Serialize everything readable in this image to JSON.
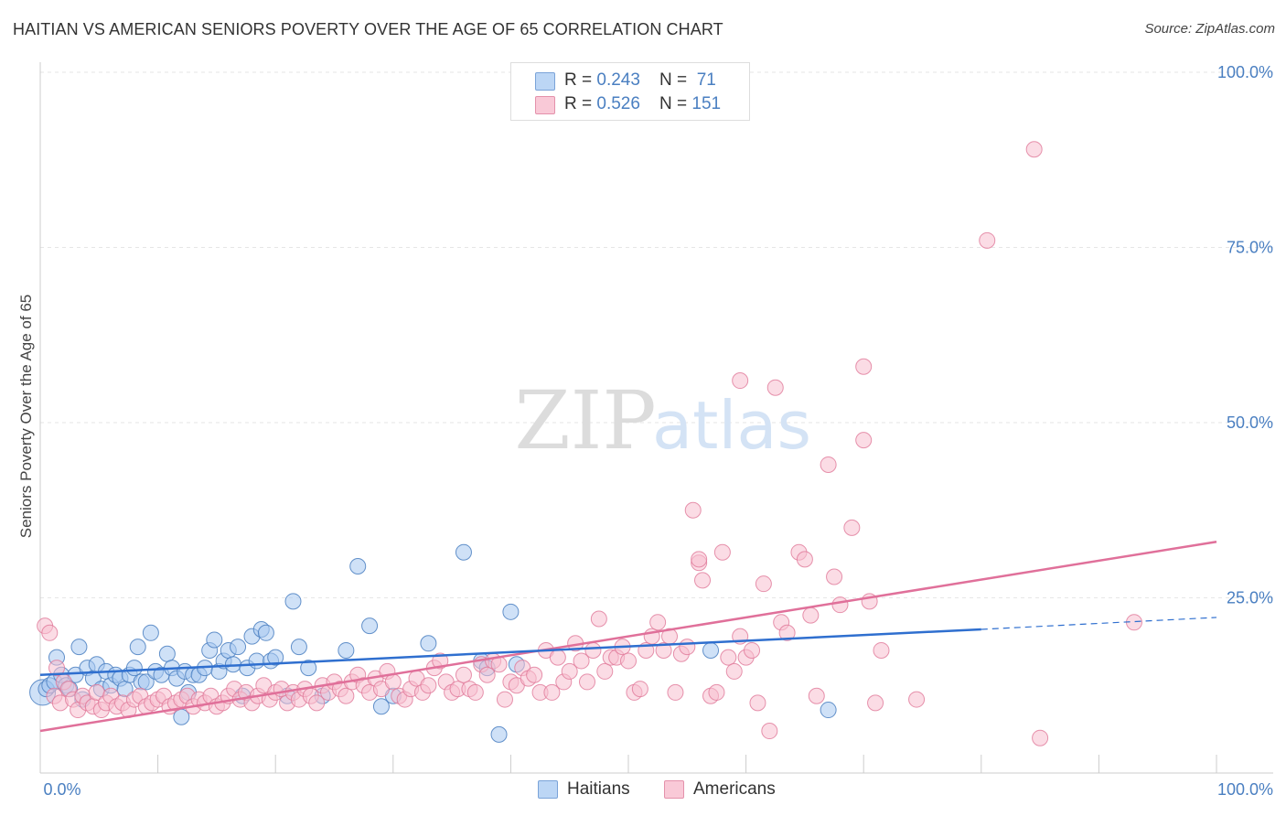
{
  "title": "HAITIAN VS AMERICAN SENIORS POVERTY OVER THE AGE OF 65 CORRELATION CHART",
  "source": "Source: ZipAtlas.com",
  "watermark": {
    "zip": "ZIP",
    "atlas": "atlas"
  },
  "legend": {
    "rows": [
      {
        "r_label": "R = ",
        "r_value": "0.243",
        "n_label": "N = ",
        "n_value": " 71"
      },
      {
        "r_label": "R = ",
        "r_value": "0.526",
        "n_label": "N = ",
        "n_value": "151"
      }
    ]
  },
  "bottom_legend": {
    "haitians": "Haitians",
    "americans": "Americans"
  },
  "colors": {
    "haitian_fill": "#a8c8f0",
    "haitian_stroke": "#4a7fc1",
    "haitian_line": "#2f6fcf",
    "american_fill": "#f7bfd0",
    "american_stroke": "#e07898",
    "american_line": "#e0709a",
    "tick_text": "#4a7fc1",
    "grid": "#e6e6e6"
  },
  "chart_data": {
    "type": "scatter",
    "title": "HAITIAN VS AMERICAN SENIORS POVERTY OVER THE AGE OF 65 CORRELATION CHART",
    "xlabel": "",
    "ylabel": "Seniors Poverty Over the Age of 65",
    "xlim": [
      0,
      100
    ],
    "ylim": [
      0,
      100
    ],
    "y_ticks": [
      25,
      50,
      75,
      100
    ],
    "y_tick_labels": [
      "25.0%",
      "50.0%",
      "75.0%",
      "100.0%"
    ],
    "x_tick_labels": [
      "0.0%",
      "100.0%"
    ],
    "series": [
      {
        "name": "Haitians",
        "r": 0.243,
        "n": 71,
        "trend": {
          "x0": 0,
          "y0": 14.0,
          "x1": 80,
          "y1": 20.5,
          "dashed_to_x": 100,
          "dashed_to_y": 22.2
        },
        "points": [
          [
            0.2,
            11.5
          ],
          [
            0.5,
            12.0
          ],
          [
            0.8,
            12.5
          ],
          [
            1.2,
            13.0
          ],
          [
            1.4,
            16.5
          ],
          [
            1.8,
            14.0
          ],
          [
            2.2,
            12.5
          ],
          [
            2.5,
            12.0
          ],
          [
            3.0,
            14.0
          ],
          [
            3.3,
            18.0
          ],
          [
            3.6,
            10.5
          ],
          [
            4.0,
            15.0
          ],
          [
            4.5,
            13.5
          ],
          [
            4.8,
            15.5
          ],
          [
            5.2,
            12.0
          ],
          [
            5.6,
            14.5
          ],
          [
            6.0,
            12.5
          ],
          [
            6.4,
            14.0
          ],
          [
            6.8,
            13.5
          ],
          [
            7.2,
            12.0
          ],
          [
            7.6,
            14.0
          ],
          [
            8.0,
            15.0
          ],
          [
            8.3,
            18.0
          ],
          [
            8.6,
            13.0
          ],
          [
            9.0,
            13.0
          ],
          [
            9.4,
            20.0
          ],
          [
            9.8,
            14.5
          ],
          [
            10.3,
            14.0
          ],
          [
            10.8,
            17.0
          ],
          [
            11.2,
            15.0
          ],
          [
            11.6,
            13.5
          ],
          [
            12.0,
            8.0
          ],
          [
            12.3,
            14.5
          ],
          [
            12.6,
            11.5
          ],
          [
            13.0,
            14.0
          ],
          [
            13.5,
            14.0
          ],
          [
            14.0,
            15.0
          ],
          [
            14.4,
            17.5
          ],
          [
            14.8,
            19.0
          ],
          [
            15.2,
            14.5
          ],
          [
            15.6,
            16.0
          ],
          [
            16.0,
            17.5
          ],
          [
            16.4,
            15.5
          ],
          [
            16.8,
            18.0
          ],
          [
            17.2,
            11.0
          ],
          [
            17.6,
            15.0
          ],
          [
            18.0,
            19.5
          ],
          [
            18.4,
            16.0
          ],
          [
            18.8,
            20.5
          ],
          [
            19.2,
            20.0
          ],
          [
            19.6,
            16.0
          ],
          [
            20.0,
            16.5
          ],
          [
            21.0,
            11.0
          ],
          [
            21.5,
            24.5
          ],
          [
            22.0,
            18.0
          ],
          [
            22.8,
            15.0
          ],
          [
            24.0,
            11.0
          ],
          [
            26.0,
            17.5
          ],
          [
            27.0,
            29.5
          ],
          [
            28.0,
            21.0
          ],
          [
            29.0,
            9.5
          ],
          [
            30.0,
            11.0
          ],
          [
            33.0,
            18.5
          ],
          [
            36.0,
            31.5
          ],
          [
            37.5,
            16.0
          ],
          [
            38.0,
            15.0
          ],
          [
            39.0,
            5.5
          ],
          [
            40.0,
            23.0
          ],
          [
            40.5,
            15.5
          ],
          [
            57.0,
            17.5
          ],
          [
            67.0,
            9.0
          ]
        ]
      },
      {
        "name": "Americans",
        "r": 0.526,
        "n": 151,
        "trend": {
          "x0": 0,
          "y0": 6.0,
          "x1": 100,
          "y1": 33.0
        },
        "points": [
          [
            0.4,
            21.0
          ],
          [
            0.8,
            20.0
          ],
          [
            1.2,
            11.0
          ],
          [
            1.4,
            15.0
          ],
          [
            1.7,
            10.0
          ],
          [
            2.0,
            13.0
          ],
          [
            2.4,
            12.0
          ],
          [
            2.8,
            10.5
          ],
          [
            3.2,
            9.0
          ],
          [
            3.6,
            11.0
          ],
          [
            4.0,
            10.0
          ],
          [
            4.5,
            9.5
          ],
          [
            4.8,
            11.5
          ],
          [
            5.2,
            9.0
          ],
          [
            5.6,
            10.0
          ],
          [
            6.0,
            11.0
          ],
          [
            6.5,
            9.5
          ],
          [
            7.0,
            10.0
          ],
          [
            7.5,
            9.0
          ],
          [
            8.0,
            10.5
          ],
          [
            8.5,
            11.0
          ],
          [
            9.0,
            9.5
          ],
          [
            9.5,
            10.0
          ],
          [
            10.0,
            10.5
          ],
          [
            10.5,
            11.0
          ],
          [
            11.0,
            9.5
          ],
          [
            11.5,
            10.0
          ],
          [
            12.0,
            10.5
          ],
          [
            12.5,
            11.0
          ],
          [
            13.0,
            9.5
          ],
          [
            13.5,
            10.5
          ],
          [
            14.0,
            10.0
          ],
          [
            14.5,
            11.0
          ],
          [
            15.0,
            9.5
          ],
          [
            15.5,
            10.0
          ],
          [
            16.0,
            11.0
          ],
          [
            16.5,
            12.0
          ],
          [
            17.0,
            10.5
          ],
          [
            17.5,
            11.5
          ],
          [
            18.0,
            10.0
          ],
          [
            18.5,
            11.0
          ],
          [
            19.0,
            12.5
          ],
          [
            19.5,
            10.5
          ],
          [
            20.0,
            11.5
          ],
          [
            20.5,
            12.0
          ],
          [
            21.0,
            10.0
          ],
          [
            21.5,
            11.5
          ],
          [
            22.0,
            10.5
          ],
          [
            22.5,
            12.0
          ],
          [
            23.0,
            11.0
          ],
          [
            23.5,
            10.0
          ],
          [
            24.0,
            12.5
          ],
          [
            24.5,
            11.5
          ],
          [
            25.0,
            13.0
          ],
          [
            25.5,
            12.0
          ],
          [
            26.0,
            11.0
          ],
          [
            26.5,
            13.0
          ],
          [
            27.0,
            14.0
          ],
          [
            27.5,
            12.5
          ],
          [
            28.0,
            11.5
          ],
          [
            28.5,
            13.5
          ],
          [
            29.0,
            12.0
          ],
          [
            29.5,
            14.5
          ],
          [
            30.0,
            13.0
          ],
          [
            30.5,
            11.0
          ],
          [
            31.0,
            10.5
          ],
          [
            31.5,
            12.0
          ],
          [
            32.0,
            13.5
          ],
          [
            32.5,
            11.5
          ],
          [
            33.0,
            12.5
          ],
          [
            33.5,
            15.0
          ],
          [
            34.0,
            16.0
          ],
          [
            34.5,
            13.0
          ],
          [
            35.0,
            11.5
          ],
          [
            35.5,
            12.0
          ],
          [
            36.0,
            14.0
          ],
          [
            36.5,
            12.0
          ],
          [
            37.0,
            11.5
          ],
          [
            37.5,
            15.5
          ],
          [
            38.0,
            14.0
          ],
          [
            38.5,
            16.0
          ],
          [
            39.0,
            15.5
          ],
          [
            39.5,
            10.5
          ],
          [
            40.0,
            13.0
          ],
          [
            40.5,
            12.5
          ],
          [
            41.0,
            15.0
          ],
          [
            41.5,
            13.5
          ],
          [
            42.0,
            14.0
          ],
          [
            42.5,
            11.5
          ],
          [
            43.0,
            17.5
          ],
          [
            43.5,
            11.5
          ],
          [
            44.0,
            16.5
          ],
          [
            44.5,
            13.0
          ],
          [
            45.0,
            14.5
          ],
          [
            45.5,
            18.5
          ],
          [
            46.0,
            16.0
          ],
          [
            46.5,
            13.0
          ],
          [
            47.0,
            17.5
          ],
          [
            47.5,
            22.0
          ],
          [
            48.0,
            14.5
          ],
          [
            48.5,
            16.5
          ],
          [
            49.0,
            16.5
          ],
          [
            49.5,
            18.0
          ],
          [
            50.0,
            16.0
          ],
          [
            50.5,
            11.5
          ],
          [
            51.0,
            12.0
          ],
          [
            51.5,
            17.5
          ],
          [
            52.0,
            19.5
          ],
          [
            52.5,
            21.5
          ],
          [
            53.0,
            17.5
          ],
          [
            53.5,
            19.5
          ],
          [
            54.0,
            11.5
          ],
          [
            54.5,
            17.0
          ],
          [
            55.0,
            18.0
          ],
          [
            55.5,
            37.5
          ],
          [
            56.0,
            30.0
          ],
          [
            56.3,
            27.5
          ],
          [
            57.0,
            11.0
          ],
          [
            57.5,
            11.5
          ],
          [
            58.0,
            31.5
          ],
          [
            58.5,
            16.5
          ],
          [
            59.0,
            14.5
          ],
          [
            59.5,
            19.5
          ],
          [
            60.0,
            16.5
          ],
          [
            60.5,
            17.5
          ],
          [
            61.0,
            10.0
          ],
          [
            61.5,
            27.0
          ],
          [
            62.0,
            6.0
          ],
          [
            62.5,
            55.0
          ],
          [
            63.0,
            21.5
          ],
          [
            63.5,
            20.0
          ],
          [
            64.5,
            31.5
          ],
          [
            65.0,
            30.5
          ],
          [
            65.5,
            22.5
          ],
          [
            66.0,
            11.0
          ],
          [
            67.0,
            44.0
          ],
          [
            67.5,
            28.0
          ],
          [
            68.0,
            24.0
          ],
          [
            69.0,
            35.0
          ],
          [
            70.0,
            47.5
          ],
          [
            70.5,
            24.5
          ],
          [
            71.0,
            10.0
          ],
          [
            71.5,
            17.5
          ],
          [
            74.5,
            10.5
          ],
          [
            80.5,
            76.0
          ],
          [
            84.5,
            89.0
          ],
          [
            85.0,
            5.0
          ],
          [
            93.0,
            21.5
          ],
          [
            56.0,
            30.5
          ],
          [
            59.5,
            56.0
          ],
          [
            70.0,
            58.0
          ]
        ]
      }
    ]
  }
}
